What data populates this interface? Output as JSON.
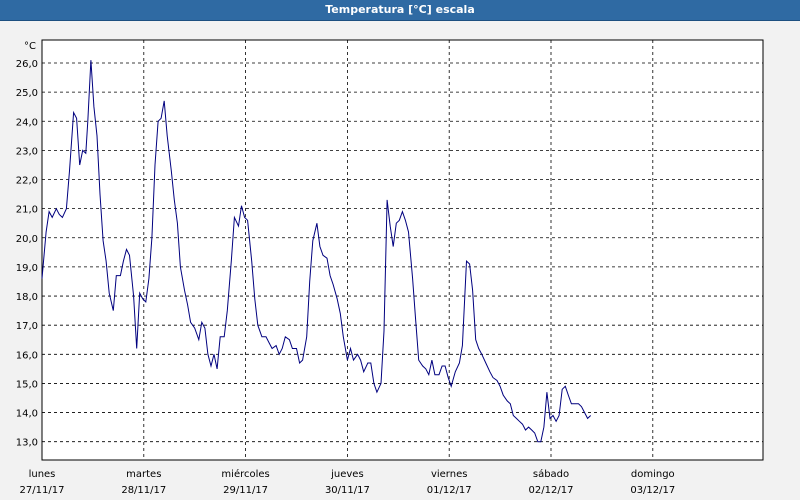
{
  "window": {
    "title": "Temperatura [°C] escala"
  },
  "chart_data": {
    "type": "line",
    "title": "Temperatura [°C] escala",
    "ylabel": "°C",
    "xlabel": "",
    "ylim": [
      12.5,
      26.6
    ],
    "xlim": [
      0,
      7.05
    ],
    "grid": true,
    "legend": "none",
    "line_color": "#00007f",
    "y_ticks": [
      "26,0",
      "25,0",
      "24,0",
      "23,0",
      "22,0",
      "21,0",
      "20,0",
      "19,0",
      "18,0",
      "17,0",
      "16,0",
      "15,0",
      "14,0",
      "13,0"
    ],
    "y_tick_values": [
      26,
      25,
      24,
      23,
      22,
      21,
      20,
      19,
      18,
      17,
      16,
      15,
      14,
      13
    ],
    "x_ticks": [
      {
        "day": "lunes",
        "date": "27/11/17",
        "x": 0
      },
      {
        "day": "martes",
        "date": "28/11/17",
        "x": 1
      },
      {
        "day": "miércoles",
        "date": "29/11/17",
        "x": 2
      },
      {
        "day": "jueves",
        "date": "30/11/17",
        "x": 3
      },
      {
        "day": "viernes",
        "date": "01/12/17",
        "x": 4
      },
      {
        "day": "sábado",
        "date": "02/12/17",
        "x": 5
      },
      {
        "day": "domingo",
        "date": "03/12/17",
        "x": 6
      }
    ],
    "series": [
      {
        "points": [
          [
            0.0,
            18.6
          ],
          [
            0.04,
            20.2
          ],
          [
            0.07,
            20.9
          ],
          [
            0.1,
            20.7
          ],
          [
            0.14,
            21.0
          ],
          [
            0.17,
            20.8
          ],
          [
            0.2,
            20.7
          ],
          [
            0.24,
            21.0
          ],
          [
            0.27,
            22.3
          ],
          [
            0.31,
            24.3
          ],
          [
            0.34,
            24.1
          ],
          [
            0.37,
            22.5
          ],
          [
            0.4,
            23.0
          ],
          [
            0.43,
            22.9
          ],
          [
            0.45,
            24.0
          ],
          [
            0.48,
            26.1
          ],
          [
            0.51,
            24.5
          ],
          [
            0.54,
            23.5
          ],
          [
            0.57,
            21.5
          ],
          [
            0.6,
            19.9
          ],
          [
            0.63,
            19.2
          ],
          [
            0.66,
            18.1
          ],
          [
            0.7,
            17.5
          ],
          [
            0.73,
            18.7
          ],
          [
            0.77,
            18.7
          ],
          [
            0.8,
            19.2
          ],
          [
            0.83,
            19.6
          ],
          [
            0.86,
            19.4
          ],
          [
            0.9,
            18.0
          ],
          [
            0.93,
            16.2
          ],
          [
            0.96,
            18.1
          ],
          [
            0.99,
            17.9
          ],
          [
            1.02,
            17.8
          ],
          [
            1.05,
            18.6
          ],
          [
            1.08,
            20.0
          ],
          [
            1.11,
            22.5
          ],
          [
            1.14,
            24.0
          ],
          [
            1.17,
            24.1
          ],
          [
            1.2,
            24.7
          ],
          [
            1.23,
            23.5
          ],
          [
            1.27,
            22.3
          ],
          [
            1.3,
            21.3
          ],
          [
            1.33,
            20.5
          ],
          [
            1.36,
            19.0
          ],
          [
            1.4,
            18.2
          ],
          [
            1.43,
            17.7
          ],
          [
            1.46,
            17.1
          ],
          [
            1.5,
            16.9
          ],
          [
            1.54,
            16.5
          ],
          [
            1.57,
            17.1
          ],
          [
            1.6,
            16.9
          ],
          [
            1.63,
            16.0
          ],
          [
            1.66,
            15.6
          ],
          [
            1.69,
            16.0
          ],
          [
            1.72,
            15.5
          ],
          [
            1.75,
            16.6
          ],
          [
            1.79,
            16.6
          ],
          [
            1.82,
            17.5
          ],
          [
            1.86,
            19.2
          ],
          [
            1.89,
            20.7
          ],
          [
            1.93,
            20.4
          ],
          [
            1.96,
            21.1
          ],
          [
            1.99,
            20.7
          ],
          [
            2.02,
            20.6
          ],
          [
            2.06,
            19.2
          ],
          [
            2.09,
            17.9
          ],
          [
            2.12,
            17.0
          ],
          [
            2.16,
            16.6
          ],
          [
            2.2,
            16.6
          ],
          [
            2.23,
            16.4
          ],
          [
            2.26,
            16.2
          ],
          [
            2.3,
            16.3
          ],
          [
            2.33,
            16.0
          ],
          [
            2.36,
            16.2
          ],
          [
            2.39,
            16.6
          ],
          [
            2.43,
            16.5
          ],
          [
            2.46,
            16.2
          ],
          [
            2.5,
            16.2
          ],
          [
            2.53,
            15.7
          ],
          [
            2.56,
            15.8
          ],
          [
            2.6,
            16.6
          ],
          [
            2.63,
            18.5
          ],
          [
            2.66,
            19.9
          ],
          [
            2.7,
            20.5
          ],
          [
            2.73,
            19.7
          ],
          [
            2.76,
            19.4
          ],
          [
            2.8,
            19.3
          ],
          [
            2.83,
            18.7
          ],
          [
            2.86,
            18.4
          ],
          [
            2.9,
            17.9
          ],
          [
            2.93,
            17.4
          ],
          [
            2.96,
            16.6
          ],
          [
            3.0,
            15.8
          ],
          [
            3.03,
            16.2
          ],
          [
            3.06,
            15.8
          ],
          [
            3.1,
            16.0
          ],
          [
            3.13,
            15.8
          ],
          [
            3.16,
            15.4
          ],
          [
            3.2,
            15.7
          ],
          [
            3.23,
            15.7
          ],
          [
            3.26,
            15.0
          ],
          [
            3.29,
            14.7
          ],
          [
            3.33,
            15.0
          ],
          [
            3.36,
            16.8
          ],
          [
            3.39,
            21.3
          ],
          [
            3.42,
            20.4
          ],
          [
            3.45,
            19.7
          ],
          [
            3.48,
            20.5
          ],
          [
            3.51,
            20.6
          ],
          [
            3.54,
            20.9
          ],
          [
            3.57,
            20.6
          ],
          [
            3.6,
            20.2
          ],
          [
            3.64,
            18.6
          ],
          [
            3.67,
            17.2
          ],
          [
            3.7,
            15.8
          ],
          [
            3.74,
            15.6
          ],
          [
            3.77,
            15.5
          ],
          [
            3.8,
            15.3
          ],
          [
            3.83,
            15.8
          ],
          [
            3.86,
            15.3
          ],
          [
            3.9,
            15.3
          ],
          [
            3.93,
            15.6
          ],
          [
            3.96,
            15.6
          ],
          [
            3.99,
            15.2
          ],
          [
            4.02,
            14.9
          ],
          [
            4.06,
            15.4
          ],
          [
            4.1,
            15.7
          ],
          [
            4.13,
            16.3
          ],
          [
            4.17,
            19.2
          ],
          [
            4.2,
            19.1
          ],
          [
            4.23,
            18.2
          ],
          [
            4.26,
            16.5
          ],
          [
            4.29,
            16.2
          ],
          [
            4.32,
            16.0
          ],
          [
            4.36,
            15.7
          ],
          [
            4.4,
            15.4
          ],
          [
            4.43,
            15.2
          ],
          [
            4.47,
            15.1
          ],
          [
            4.5,
            14.9
          ],
          [
            4.53,
            14.6
          ],
          [
            4.57,
            14.4
          ],
          [
            4.6,
            14.3
          ],
          [
            4.63,
            13.9
          ],
          [
            4.66,
            13.8
          ],
          [
            4.69,
            13.7
          ],
          [
            4.72,
            13.6
          ],
          [
            4.75,
            13.4
          ],
          [
            4.78,
            13.5
          ],
          [
            4.81,
            13.4
          ],
          [
            4.84,
            13.3
          ],
          [
            4.87,
            13.0
          ],
          [
            4.9,
            13.0
          ],
          [
            4.93,
            13.5
          ],
          [
            4.96,
            14.7
          ],
          [
            4.99,
            13.8
          ],
          [
            5.02,
            13.9
          ],
          [
            5.05,
            13.7
          ],
          [
            5.08,
            13.9
          ],
          [
            5.11,
            14.8
          ],
          [
            5.14,
            14.9
          ],
          [
            5.17,
            14.6
          ],
          [
            5.2,
            14.3
          ],
          [
            5.24,
            14.3
          ],
          [
            5.27,
            14.3
          ],
          [
            5.3,
            14.2
          ],
          [
            5.33,
            14.0
          ],
          [
            5.36,
            13.8
          ],
          [
            5.39,
            13.9
          ]
        ]
      }
    ]
  }
}
